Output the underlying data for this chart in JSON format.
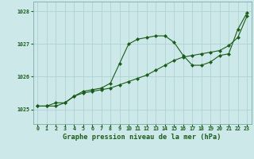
{
  "title": "Graphe pression niveau de la mer (hPa)",
  "background_color": "#cce8e8",
  "line_color": "#1a5c1a",
  "marker_color": "#1a5c1a",
  "grid_color": "#aacece",
  "xlim": [
    -0.5,
    23.5
  ],
  "ylim": [
    1024.55,
    1028.3
  ],
  "yticks": [
    1025,
    1026,
    1027,
    1028
  ],
  "xticks": [
    0,
    1,
    2,
    3,
    4,
    5,
    6,
    7,
    8,
    9,
    10,
    11,
    12,
    13,
    14,
    15,
    16,
    17,
    18,
    19,
    20,
    21,
    22,
    23
  ],
  "series1_x": [
    0,
    1,
    2,
    3,
    4,
    5,
    6,
    7,
    8,
    9,
    10,
    11,
    12,
    13,
    14,
    15,
    16,
    17,
    18,
    19,
    20,
    21,
    22,
    23
  ],
  "series1_y": [
    1025.1,
    1025.1,
    1025.1,
    1025.2,
    1025.4,
    1025.5,
    1025.55,
    1025.6,
    1025.65,
    1025.75,
    1025.85,
    1025.95,
    1026.05,
    1026.2,
    1026.35,
    1026.5,
    1026.6,
    1026.65,
    1026.7,
    1026.75,
    1026.8,
    1026.95,
    1027.2,
    1027.85
  ],
  "series2_x": [
    0,
    1,
    2,
    3,
    4,
    5,
    6,
    7,
    8,
    9,
    10,
    11,
    12,
    13,
    14,
    15,
    16,
    17,
    18,
    19,
    20,
    21,
    22,
    23
  ],
  "series2_y": [
    1025.1,
    1025.1,
    1025.2,
    1025.2,
    1025.4,
    1025.55,
    1025.6,
    1025.65,
    1025.8,
    1026.4,
    1027.0,
    1027.15,
    1027.2,
    1027.25,
    1027.25,
    1027.05,
    1026.65,
    1026.35,
    1026.35,
    1026.45,
    1026.65,
    1026.7,
    1027.45,
    1027.95
  ]
}
